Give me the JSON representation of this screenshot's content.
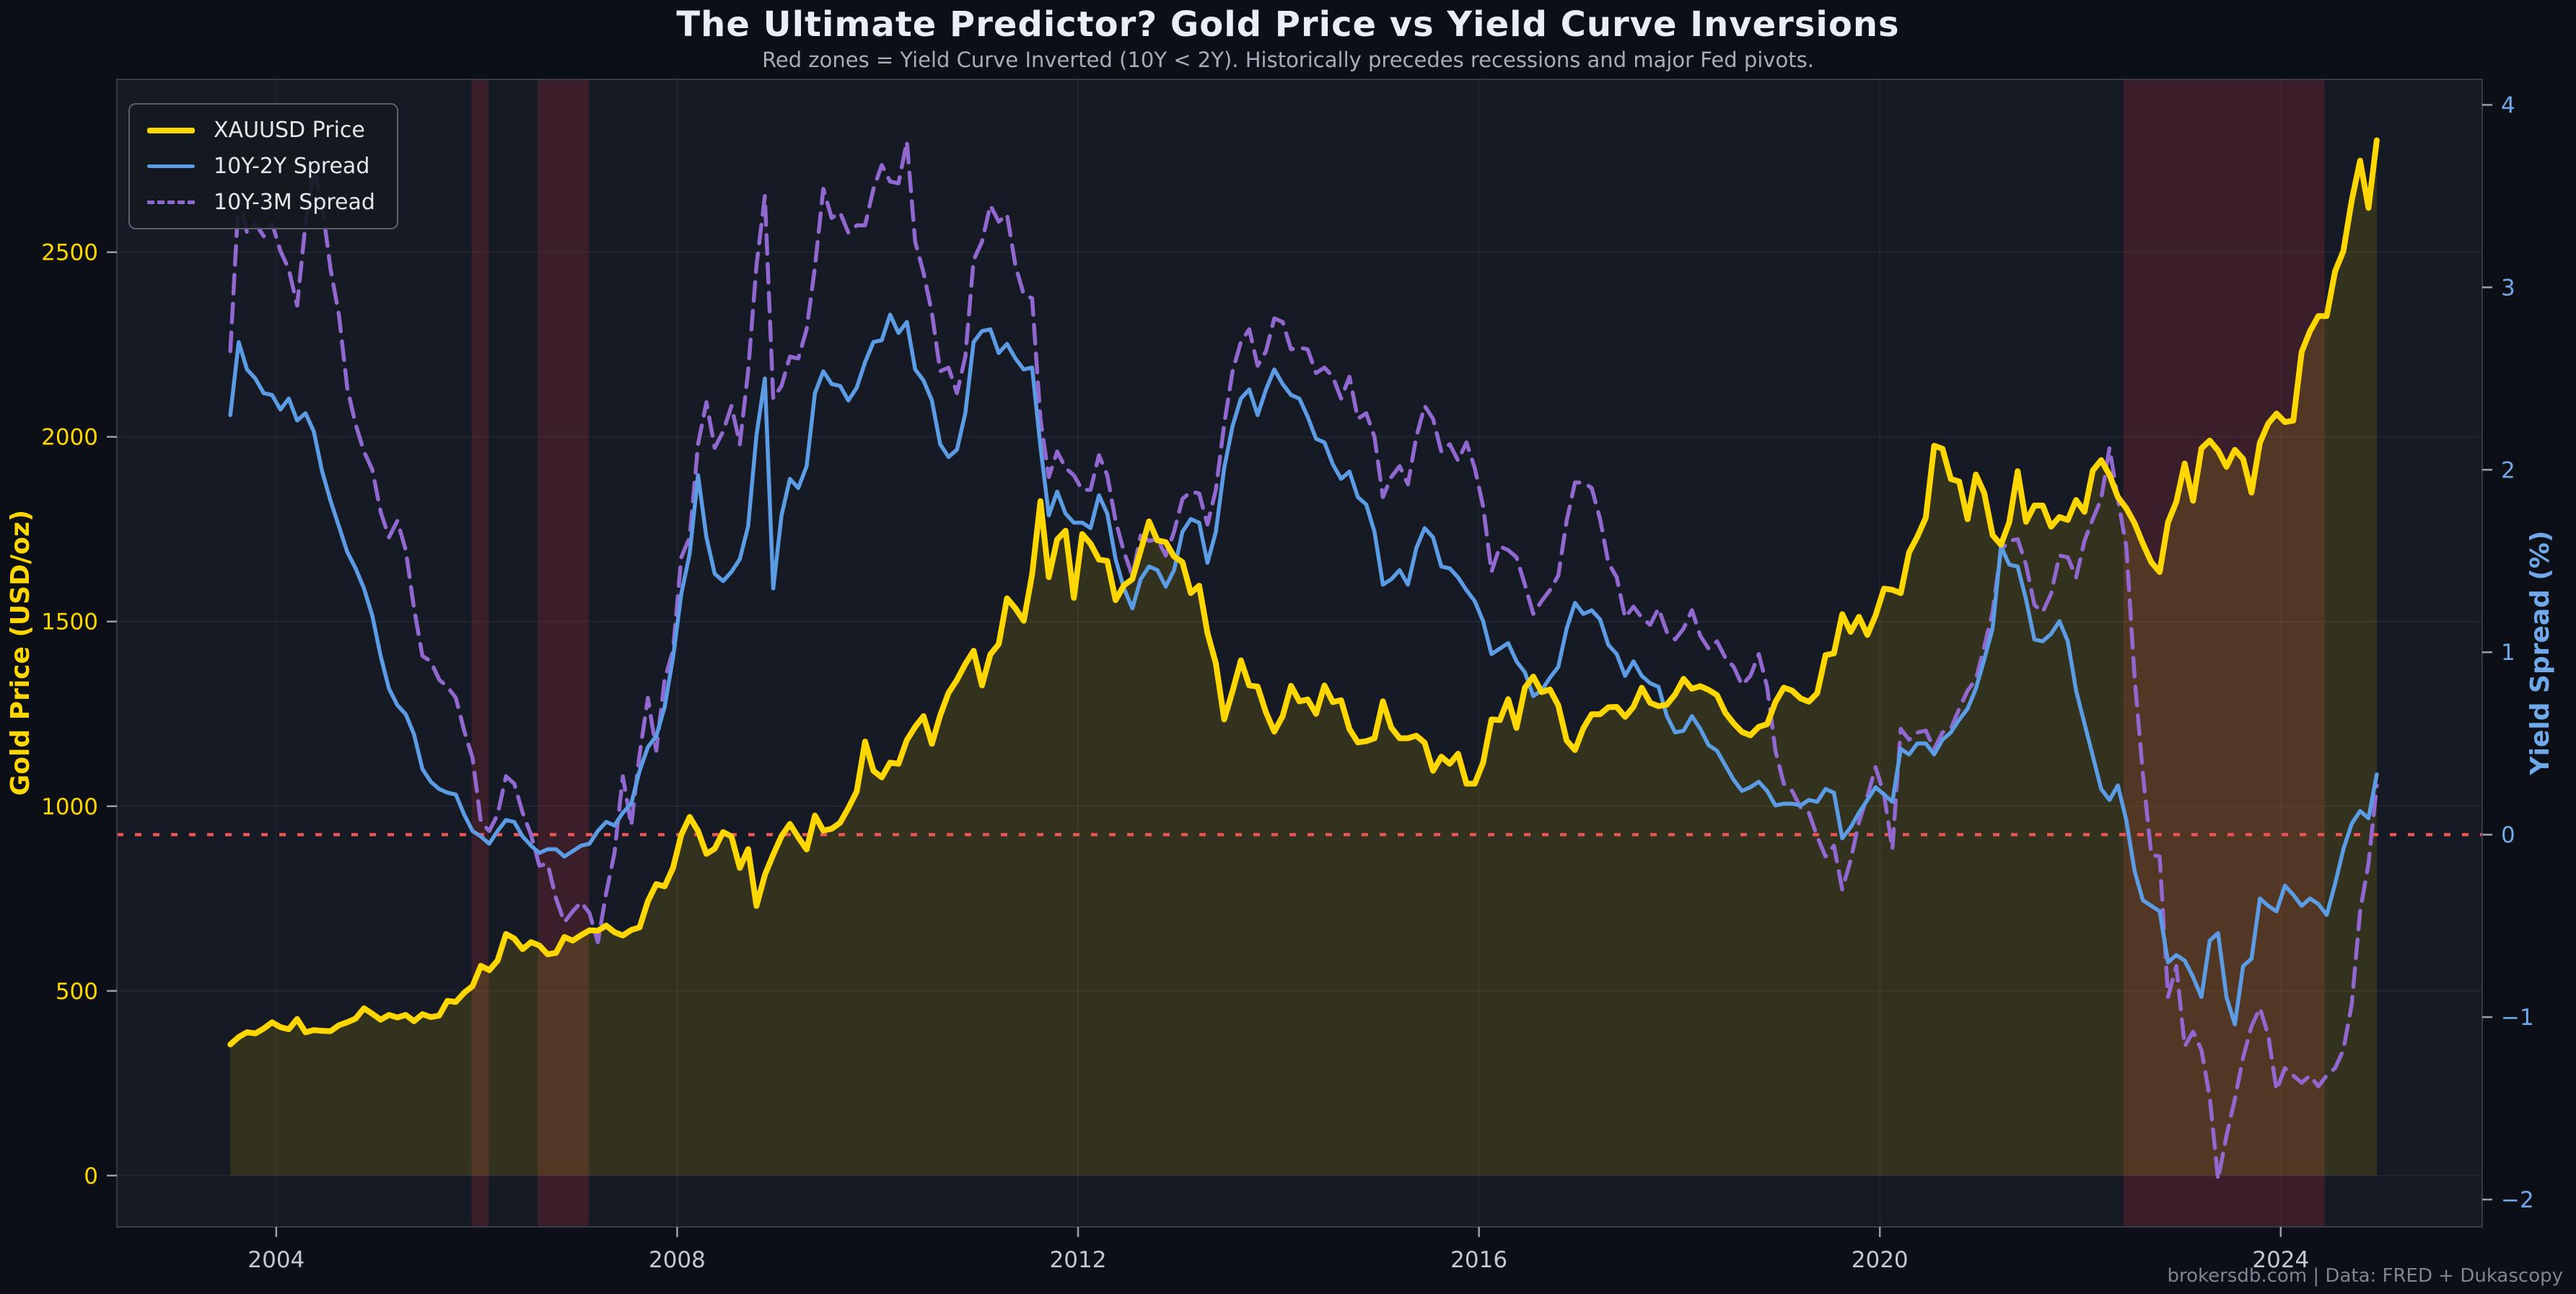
{
  "header": {
    "title": "The Ultimate Predictor? Gold Price vs Yield Curve Inversions",
    "subtitle": "Red zones = Yield Curve Inverted (10Y < 2Y). Historically precedes recessions and major Fed pivots."
  },
  "legend": {
    "items": [
      {
        "label": "XAUUSD Price",
        "color": "#FFD700",
        "style": "solid",
        "thickness": 8
      },
      {
        "label": "10Y-2Y Spread",
        "color": "#5B9CE5",
        "style": "solid",
        "thickness": 5
      },
      {
        "label": "10Y-3M Spread",
        "color": "#9168CF",
        "style": "dashed",
        "thickness": 5
      }
    ]
  },
  "footer": {
    "attribution": "brokersdb.com  |  Data: FRED + Dukascopy"
  },
  "chart_data": {
    "type": "line",
    "title": "The Ultimate Predictor? Gold Price vs Yield Curve Inversions",
    "subtitle": "Red zones = Yield Curve Inverted (10Y < 2Y). Historically precedes recessions and major Fed pivots.",
    "x_start": "2003-07",
    "x_step_months": 1,
    "n_points": 258,
    "axes": {
      "x": {
        "range": [
          2002.41,
          2026.01
        ],
        "ticks": [
          2004,
          2008,
          2012,
          2016,
          2020,
          2024
        ],
        "tick_color": "#c3c8d2"
      },
      "left": {
        "label": "Gold Price (USD/oz)",
        "color": "#FFD700",
        "range": [
          -139,
          2968
        ],
        "ticks": [
          0,
          500,
          1000,
          1500,
          2000,
          2500
        ]
      },
      "right": {
        "label": "Yield Spread (%)",
        "color": "#6fa9ea",
        "range": [
          -2.15,
          4.14
        ],
        "ticks": [
          4,
          3,
          2,
          1,
          0,
          -1,
          -2
        ]
      }
    },
    "grid": true,
    "legend_position": "top-left",
    "fig_bg": "#0c0f16",
    "plot_bg": "#151a24",
    "band_color": "rgba(155,45,60,0.28)",
    "gold_fill_color": "rgba(255,213,0,0.13)",
    "zero_line": {
      "axis": "right",
      "value": 0,
      "color": "#e85555",
      "style": "dotted"
    },
    "inversion_bands": [
      {
        "from": 2005.95,
        "to": 2006.12
      },
      {
        "from": 2006.61,
        "to": 2007.12
      },
      {
        "from": 2022.43,
        "to": 2024.44
      }
    ],
    "series": [
      {
        "name": "XAUUSD Price",
        "axis": "left",
        "color": "#FFD700",
        "style": "solid",
        "width": 8,
        "fill_to_zero": true,
        "values": [
          355,
          375,
          388,
          385,
          398,
          415,
          402,
          396,
          424,
          388,
          394,
          392,
          391,
          407,
          415,
          425,
          453,
          438,
          422,
          435,
          428,
          435,
          418,
          437,
          429,
          433,
          473,
          470,
          495,
          513,
          568,
          556,
          582,
          654,
          642,
          613,
          632,
          623,
          599,
          603,
          646,
          636,
          651,
          664,
          663,
          677,
          659,
          650,
          665,
          672,
          743,
          789,
          783,
          833,
          923,
          971,
          933,
          871,
          885,
          930,
          918,
          833,
          884,
          730,
          814,
          869,
          919,
          952,
          916,
          883,
          975,
          934,
          939,
          955,
          995,
          1040,
          1175,
          1096,
          1078,
          1118,
          1115,
          1179,
          1215,
          1244,
          1169,
          1246,
          1307,
          1342,
          1385,
          1421,
          1327,
          1411,
          1439,
          1563,
          1536,
          1502,
          1628,
          1826,
          1620,
          1722,
          1746,
          1564,
          1737,
          1711,
          1668,
          1664,
          1558,
          1598,
          1615,
          1692,
          1771,
          1720,
          1715,
          1676,
          1661,
          1577,
          1597,
          1469,
          1387,
          1235,
          1312,
          1395,
          1327,
          1324,
          1254,
          1202,
          1244,
          1326,
          1284,
          1289,
          1250,
          1327,
          1282,
          1287,
          1209,
          1173,
          1176,
          1184,
          1284,
          1213,
          1184,
          1184,
          1191,
          1172,
          1096,
          1134,
          1115,
          1142,
          1061,
          1061,
          1118,
          1235,
          1233,
          1290,
          1212,
          1321,
          1351,
          1309,
          1316,
          1273,
          1178,
          1152,
          1211,
          1249,
          1249,
          1268,
          1269,
          1242,
          1269,
          1321,
          1280,
          1271,
          1275,
          1303,
          1345,
          1318,
          1325,
          1315,
          1301,
          1253,
          1224,
          1201,
          1192,
          1215,
          1222,
          1282,
          1321,
          1313,
          1292,
          1283,
          1306,
          1409,
          1414,
          1520,
          1472,
          1513,
          1464,
          1517,
          1589,
          1586,
          1577,
          1687,
          1730,
          1781,
          1976,
          1968,
          1886,
          1879,
          1777,
          1898,
          1848,
          1734,
          1708,
          1769,
          1907,
          1770,
          1814,
          1814,
          1757,
          1783,
          1775,
          1829,
          1797,
          1909,
          1937,
          1897,
          1837,
          1807,
          1766,
          1711,
          1661,
          1634,
          1769,
          1824,
          1928,
          1827,
          1969,
          1990,
          1963,
          1919,
          1965,
          1940,
          1849,
          1984,
          2036,
          2063,
          2040,
          2044,
          2230,
          2286,
          2327,
          2327,
          2448,
          2503,
          2640,
          2748,
          2620,
          2803
        ]
      },
      {
        "name": "10Y-2Y Spread",
        "axis": "right",
        "color": "#5B9CE5",
        "style": "solid",
        "width": 5.5,
        "values": [
          2.3,
          2.7,
          2.55,
          2.5,
          2.42,
          2.41,
          2.33,
          2.39,
          2.27,
          2.31,
          2.21,
          1.99,
          1.83,
          1.69,
          1.55,
          1.46,
          1.35,
          1.2,
          0.98,
          0.8,
          0.71,
          0.66,
          0.55,
          0.36,
          0.29,
          0.25,
          0.23,
          0.22,
          0.11,
          0.02,
          -0.01,
          -0.05,
          0.02,
          0.08,
          0.07,
          -0.01,
          -0.06,
          -0.1,
          -0.08,
          -0.08,
          -0.12,
          -0.09,
          -0.06,
          -0.05,
          0.02,
          0.07,
          0.05,
          0.12,
          0.17,
          0.35,
          0.48,
          0.54,
          0.7,
          0.97,
          1.32,
          1.54,
          1.97,
          1.63,
          1.43,
          1.39,
          1.44,
          1.51,
          1.69,
          2.19,
          2.5,
          1.35,
          1.75,
          1.95,
          1.9,
          2.02,
          2.42,
          2.54,
          2.47,
          2.46,
          2.38,
          2.45,
          2.59,
          2.7,
          2.71,
          2.85,
          2.75,
          2.81,
          2.55,
          2.49,
          2.38,
          2.14,
          2.07,
          2.11,
          2.31,
          2.7,
          2.76,
          2.77,
          2.64,
          2.69,
          2.61,
          2.55,
          2.56,
          2.13,
          1.75,
          1.88,
          1.76,
          1.71,
          1.71,
          1.68,
          1.86,
          1.76,
          1.51,
          1.35,
          1.24,
          1.4,
          1.47,
          1.45,
          1.36,
          1.45,
          1.66,
          1.73,
          1.71,
          1.49,
          1.66,
          2.01,
          2.24,
          2.39,
          2.44,
          2.3,
          2.44,
          2.55,
          2.47,
          2.41,
          2.39,
          2.29,
          2.17,
          2.15,
          2.03,
          1.95,
          1.99,
          1.85,
          1.81,
          1.66,
          1.37,
          1.4,
          1.45,
          1.37,
          1.57,
          1.68,
          1.63,
          1.47,
          1.46,
          1.41,
          1.34,
          1.28,
          1.17,
          0.99,
          1.02,
          1.05,
          0.95,
          0.89,
          0.76,
          0.79,
          0.86,
          0.92,
          1.13,
          1.27,
          1.21,
          1.23,
          1.18,
          1.04,
          0.99,
          0.87,
          0.95,
          0.87,
          0.83,
          0.81,
          0.65,
          0.56,
          0.57,
          0.65,
          0.58,
          0.49,
          0.46,
          0.38,
          0.3,
          0.24,
          0.26,
          0.29,
          0.24,
          0.16,
          0.17,
          0.17,
          0.16,
          0.19,
          0.18,
          0.25,
          0.23,
          -0.02,
          0.04,
          0.12,
          0.19,
          0.26,
          0.22,
          0.18,
          0.47,
          0.44,
          0.5,
          0.5,
          0.44,
          0.52,
          0.56,
          0.63,
          0.69,
          0.8,
          0.96,
          1.13,
          1.58,
          1.48,
          1.47,
          1.29,
          1.07,
          1.06,
          1.1,
          1.17,
          1.06,
          0.79,
          0.61,
          0.43,
          0.25,
          0.19,
          0.27,
          0.08,
          -0.2,
          -0.36,
          -0.39,
          -0.42,
          -0.7,
          -0.66,
          -0.69,
          -0.78,
          -0.89,
          -0.58,
          -0.54,
          -0.89,
          -1.04,
          -0.72,
          -0.68,
          -0.35,
          -0.39,
          -0.42,
          -0.28,
          -0.33,
          -0.39,
          -0.35,
          -0.38,
          -0.44,
          -0.27,
          -0.08,
          0.06,
          0.13,
          0.09,
          0.33
        ]
      },
      {
        "name": "10Y-3M Spread",
        "axis": "right",
        "color": "#9168CF",
        "style": "dashed",
        "width": 5.5,
        "values": [
          2.65,
          3.5,
          3.3,
          3.35,
          3.28,
          3.35,
          3.2,
          3.1,
          2.9,
          3.35,
          3.65,
          3.45,
          3.1,
          2.85,
          2.45,
          2.25,
          2.1,
          2.0,
          1.77,
          1.63,
          1.72,
          1.56,
          1.24,
          0.98,
          0.95,
          0.85,
          0.81,
          0.75,
          0.57,
          0.42,
          0.07,
          0.02,
          0.11,
          0.32,
          0.28,
          0.12,
          0.0,
          -0.17,
          -0.16,
          -0.35,
          -0.48,
          -0.42,
          -0.37,
          -0.43,
          -0.59,
          -0.32,
          -0.1,
          0.32,
          0.05,
          0.44,
          0.75,
          0.46,
          0.85,
          1.01,
          1.52,
          1.63,
          2.14,
          2.37,
          2.12,
          2.21,
          2.35,
          2.14,
          2.54,
          3.12,
          3.5,
          2.39,
          2.46,
          2.62,
          2.61,
          2.77,
          3.11,
          3.54,
          3.38,
          3.41,
          3.3,
          3.34,
          3.34,
          3.54,
          3.67,
          3.58,
          3.57,
          3.8,
          3.25,
          3.08,
          2.86,
          2.54,
          2.56,
          2.42,
          2.62,
          3.15,
          3.25,
          3.45,
          3.36,
          3.4,
          3.12,
          2.96,
          2.94,
          2.28,
          1.96,
          2.1,
          2.01,
          1.97,
          1.89,
          1.89,
          2.08,
          1.97,
          1.72,
          1.55,
          1.42,
          1.64,
          1.61,
          1.62,
          1.53,
          1.66,
          1.84,
          1.88,
          1.87,
          1.7,
          1.89,
          2.25,
          2.54,
          2.7,
          2.77,
          2.57,
          2.65,
          2.83,
          2.81,
          2.66,
          2.67,
          2.66,
          2.53,
          2.56,
          2.51,
          2.39,
          2.51,
          2.28,
          2.31,
          2.18,
          1.85,
          1.96,
          2.02,
          1.92,
          2.18,
          2.35,
          2.28,
          2.1,
          2.14,
          2.05,
          2.15,
          2.01,
          1.8,
          1.44,
          1.58,
          1.56,
          1.52,
          1.37,
          1.21,
          1.28,
          1.34,
          1.42,
          1.72,
          1.93,
          1.93,
          1.9,
          1.73,
          1.49,
          1.41,
          1.19,
          1.25,
          1.19,
          1.15,
          1.24,
          1.11,
          1.07,
          1.13,
          1.23,
          1.09,
          1.02,
          1.06,
          0.97,
          0.92,
          0.82,
          0.87,
          0.99,
          0.81,
          0.46,
          0.28,
          0.24,
          0.15,
          0.12,
          -0.01,
          -0.12,
          -0.06,
          -0.3,
          -0.14,
          0.07,
          0.21,
          0.37,
          0.22,
          -0.08,
          0.58,
          0.52,
          0.56,
          0.57,
          0.47,
          0.56,
          0.58,
          0.69,
          0.79,
          0.85,
          1.03,
          1.22,
          1.56,
          1.61,
          1.62,
          1.48,
          1.26,
          1.22,
          1.32,
          1.53,
          1.52,
          1.41,
          1.61,
          1.73,
          1.84,
          2.12,
          1.84,
          1.58,
          0.86,
          0.33,
          -0.11,
          -0.12,
          -0.89,
          -0.72,
          -1.16,
          -1.08,
          -1.18,
          -1.44,
          -1.89,
          -1.65,
          -1.45,
          -1.22,
          -1.05,
          -0.95,
          -1.1,
          -1.4,
          -1.28,
          -1.32,
          -1.36,
          -1.32,
          -1.38,
          -1.32,
          -1.28,
          -1.18,
          -0.93,
          -0.42,
          -0.16,
          0.27
        ]
      }
    ]
  }
}
